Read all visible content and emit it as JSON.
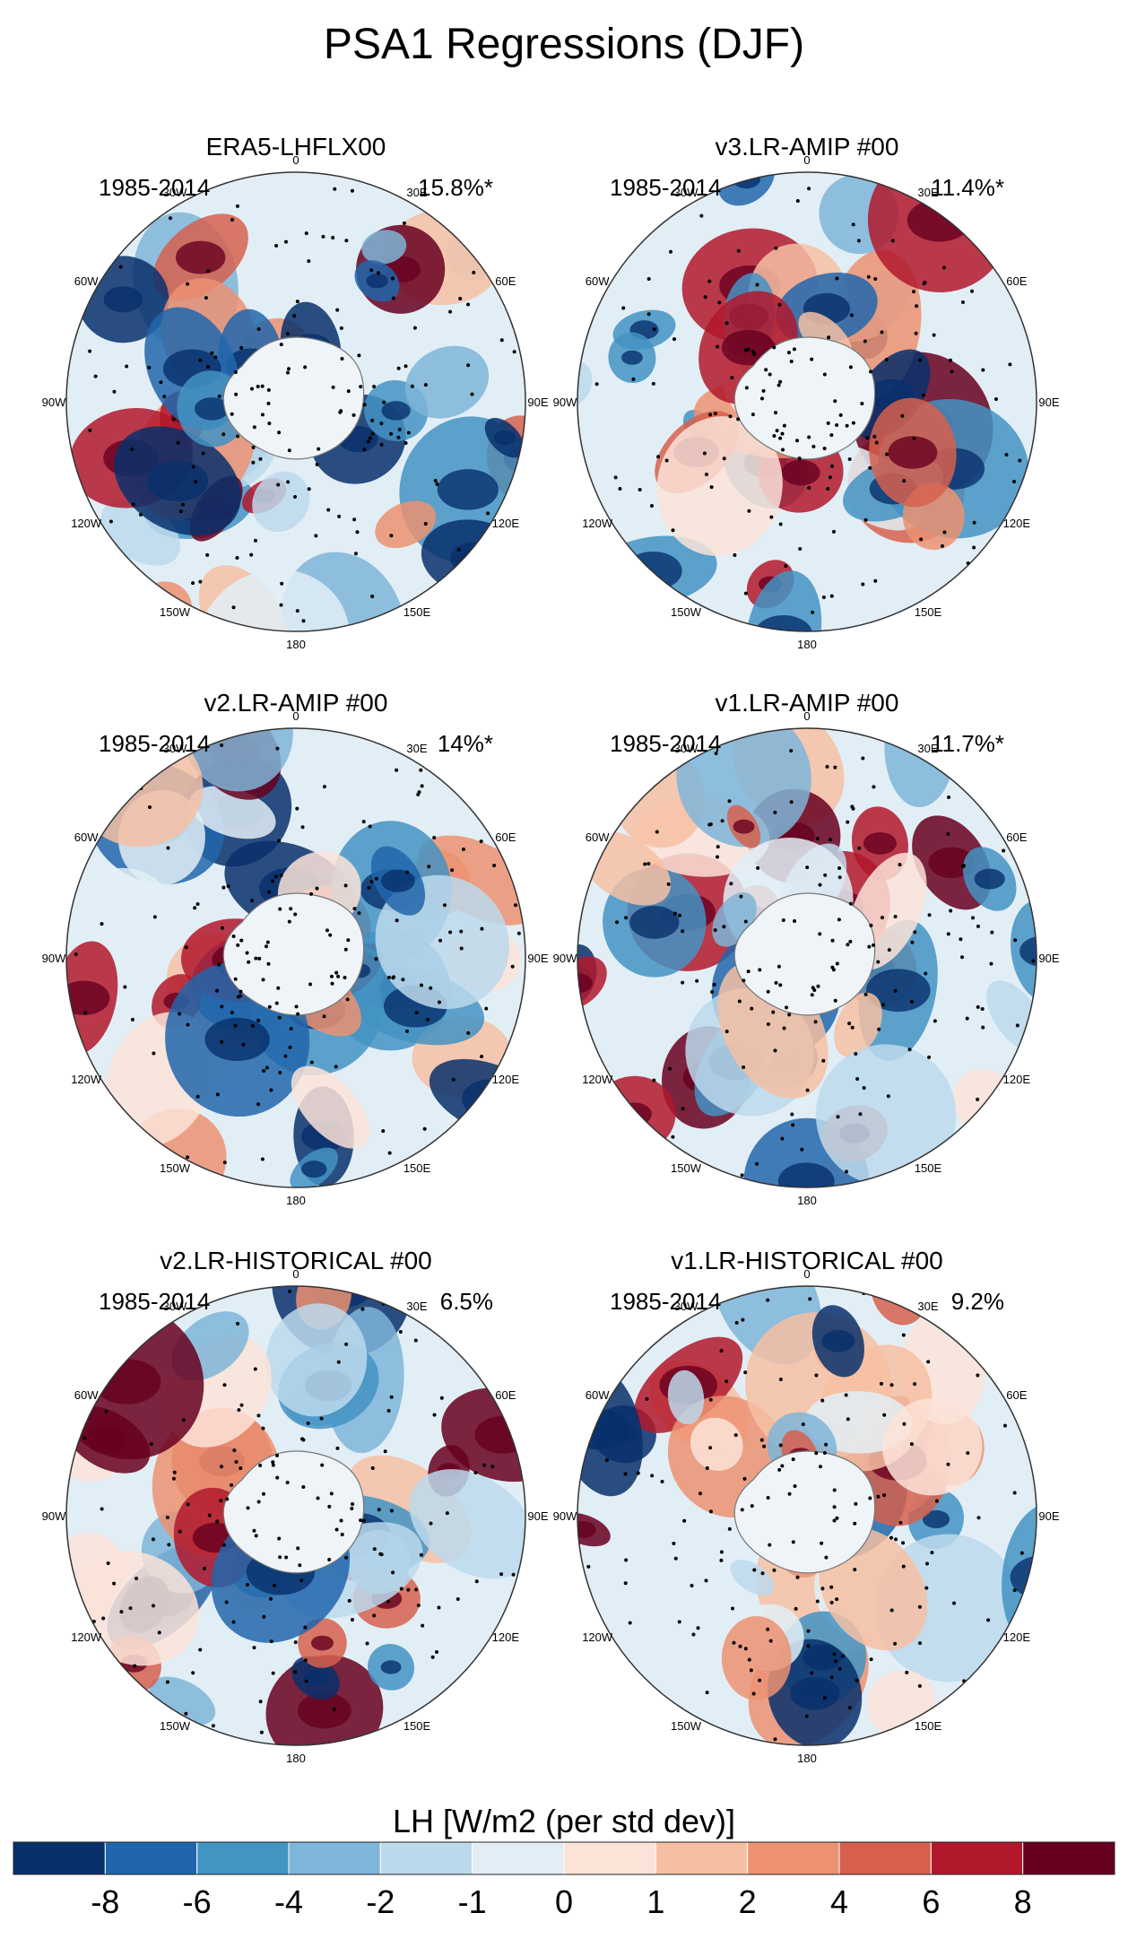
{
  "title": "PSA1 Regressions (DJF)",
  "panels": [
    {
      "title": "ERA5-LHFLX00",
      "period": "1985-2014",
      "pct": "15.8%*"
    },
    {
      "title": "v3.LR-AMIP  #00",
      "period": "1985-2014",
      "pct": "11.4%*"
    },
    {
      "title": "v2.LR-AMIP  #00",
      "period": "1985-2014",
      "pct": "14%*"
    },
    {
      "title": "v1.LR-AMIP  #00",
      "period": "1985-2014",
      "pct": "11.7%*"
    },
    {
      "title": "v2.LR-HISTORICAL  #00",
      "period": "1985-2014",
      "pct": "6.5%"
    },
    {
      "title": "v1.LR-HISTORICAL  #00",
      "period": "1985-2014",
      "pct": "9.2%"
    }
  ],
  "lon_labels": [
    "0",
    "30E",
    "60E",
    "90E",
    "120E",
    "150E",
    "180",
    "150W",
    "120W",
    "90W",
    "60W",
    "30W"
  ],
  "colorbar": {
    "title": "LH [W/m2 (per std dev)]",
    "colors": [
      "#08306b",
      "#2166ac",
      "#4393c3",
      "#7fb5d8",
      "#bcd9ec",
      "#e2eef6",
      "#fbe3d8",
      "#f6bfa3",
      "#ec9272",
      "#d6604d",
      "#b2182b",
      "#67001f"
    ],
    "ticks": [
      "-8",
      "-6",
      "-4",
      "-2",
      "-1",
      "0",
      "1",
      "2",
      "4",
      "6",
      "8"
    ]
  }
}
